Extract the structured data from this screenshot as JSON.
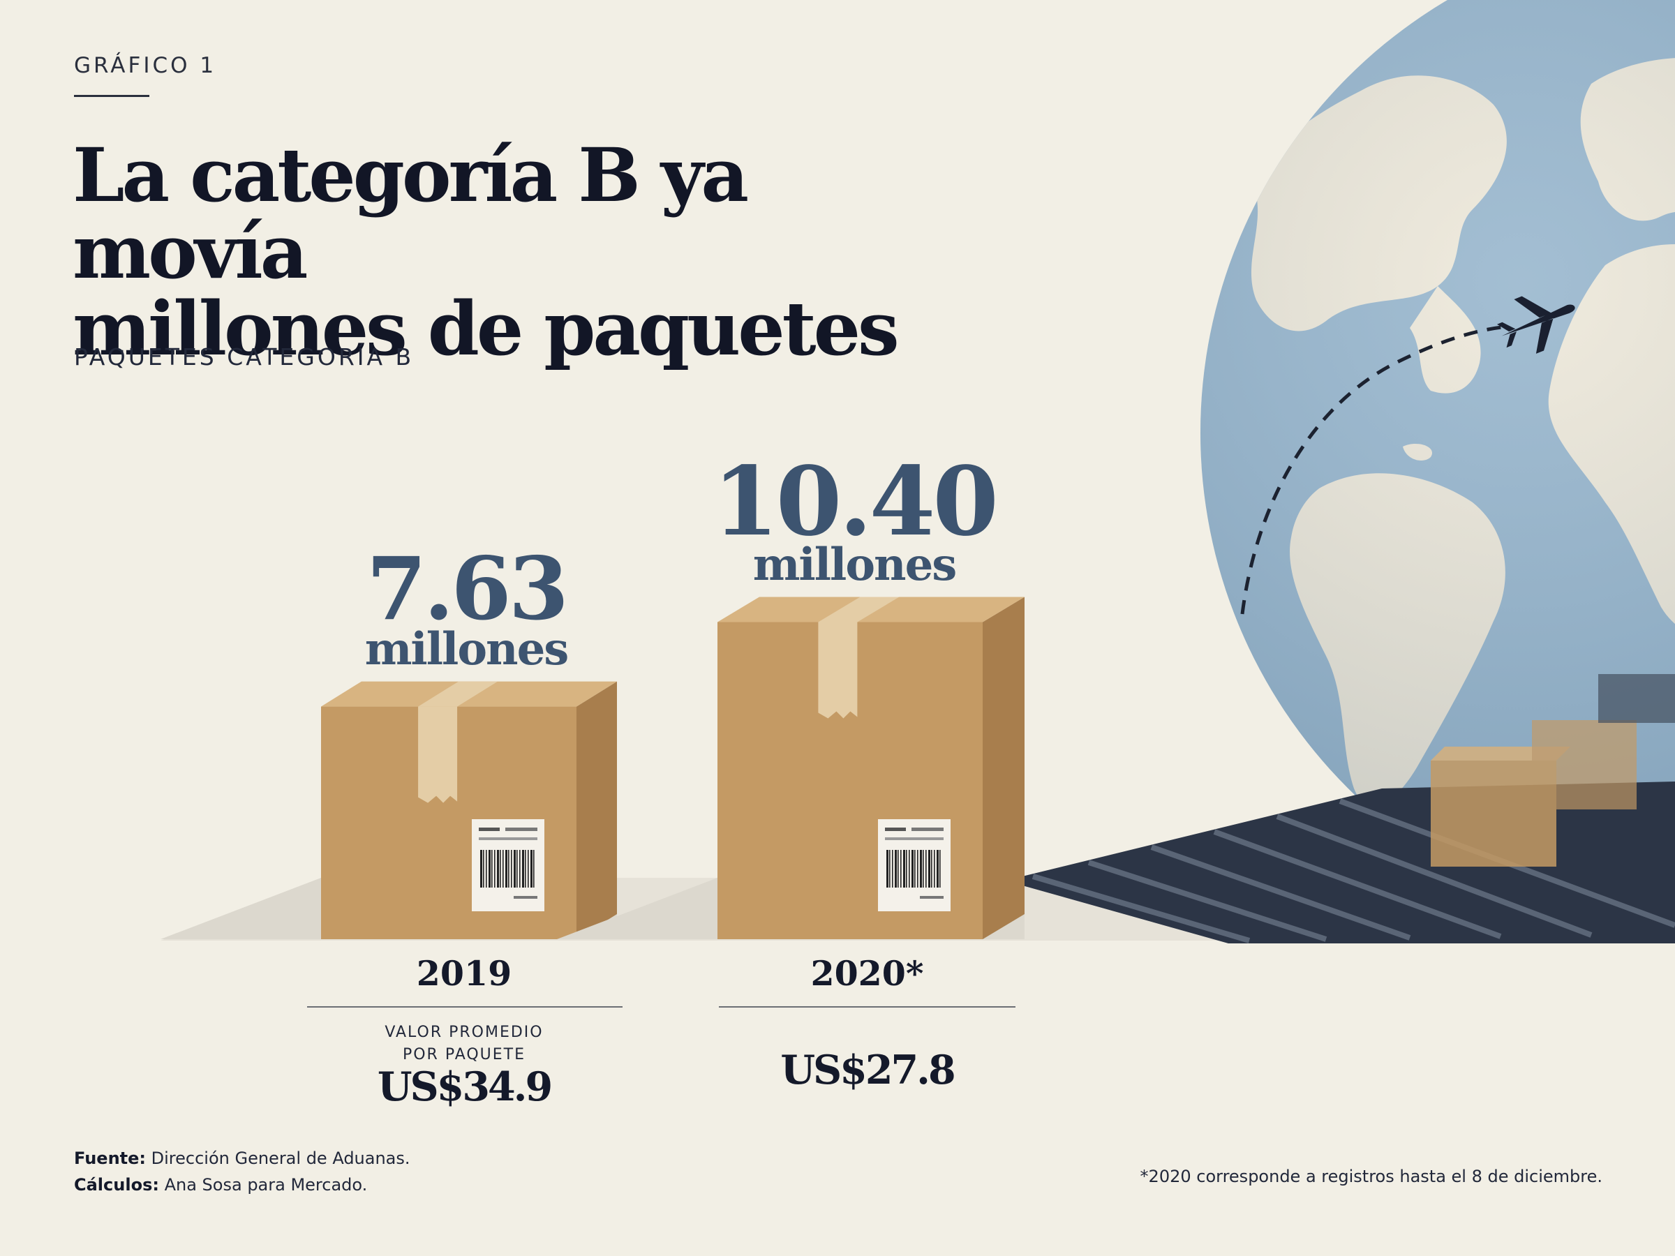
{
  "header": {
    "kicker": "GRÁFICO 1",
    "title_line1": "La categoría B ya movía",
    "title_line2": "millones de paquetes",
    "subtitle": "PAQUETES CATEGORÍA B"
  },
  "chart_data": {
    "type": "bar",
    "title": "La categoría B ya movía millones de paquetes",
    "subtitle": "PAQUETES CATEGORÍA B",
    "categories": [
      "2019",
      "2020*"
    ],
    "series": [
      {
        "values": [
          7.63,
          10.4
        ],
        "unit": "millones"
      }
    ],
    "value_labels": [
      "7.63",
      "10.40"
    ],
    "value_unit": "millones",
    "secondary_label": "VALOR PROMEDIO POR PAQUETE",
    "secondary_values": [
      "US$34.9",
      "US$27.8"
    ],
    "encoding": "box-height",
    "colors": {
      "value_text": "#3d5470",
      "box": "#c49a64",
      "globe_ocean": "#8fb0c9"
    }
  },
  "labels": {
    "avg_line1": "VALOR PROMEDIO",
    "avg_line2": "POR PAQUETE"
  },
  "footer": {
    "source_label": "Fuente:",
    "source_value": "Dirección General de Aduanas.",
    "calc_label": "Cálculos:",
    "calc_value": "Ana Sosa para Mercado.",
    "footnote": "*2020 corresponde a registros hasta el 8 de diciembre."
  },
  "icons": [
    "globe-icon",
    "airplane-icon",
    "package-box-icon",
    "barcode-label-icon",
    "conveyor-belt-icon"
  ]
}
